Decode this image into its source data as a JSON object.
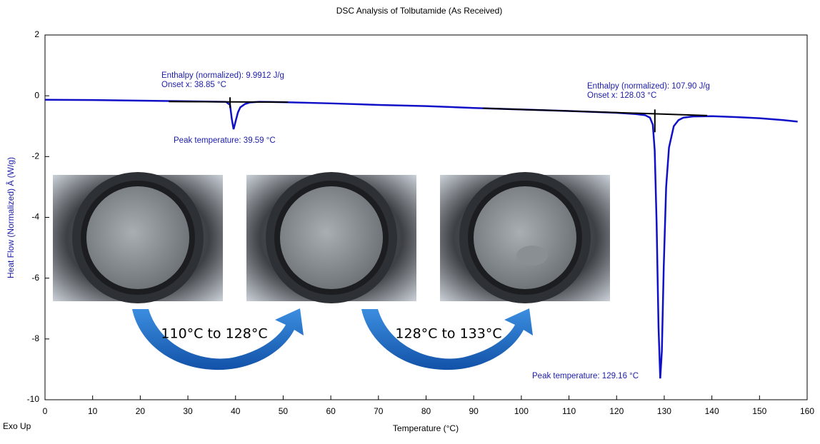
{
  "chart_data": {
    "type": "line",
    "title": "DSC Analysis of Tolbutamide (As Received)",
    "x_label": "Temperature    (°C)",
    "y_label": "Heat Flow (Normalized) Â (W/g)",
    "corner_note": "Exo Up",
    "xlim": [
      0,
      160
    ],
    "xticks": [
      0,
      10,
      20,
      30,
      40,
      50,
      60,
      70,
      80,
      90,
      100,
      110,
      120,
      130,
      140,
      150,
      160
    ],
    "ylim": [
      -10,
      2
    ],
    "yticks": [
      -10,
      -8,
      -6,
      -4,
      -2,
      0,
      2
    ],
    "series": [
      {
        "color": "#1010c8",
        "x": [
          0,
          10,
          20,
          30,
          38,
          38.85,
          39.2,
          39.59,
          40,
          40.5,
          41,
          42,
          43,
          45,
          50,
          60,
          70,
          80,
          90,
          100,
          110,
          120,
          124,
          126,
          127,
          127.6,
          128,
          128.4,
          128.8,
          129.16,
          129.5,
          129.9,
          130.4,
          131,
          132,
          133,
          134,
          136,
          140,
          145,
          150,
          155,
          158
        ],
        "y": [
          -0.13,
          -0.14,
          -0.16,
          -0.18,
          -0.2,
          -0.3,
          -0.75,
          -1.1,
          -0.85,
          -0.55,
          -0.38,
          -0.27,
          -0.22,
          -0.2,
          -0.21,
          -0.25,
          -0.3,
          -0.34,
          -0.4,
          -0.45,
          -0.5,
          -0.56,
          -0.6,
          -0.64,
          -0.72,
          -0.95,
          -1.8,
          -4.2,
          -7.6,
          -9.3,
          -8.4,
          -5.6,
          -3.0,
          -1.7,
          -1.0,
          -0.8,
          -0.72,
          -0.68,
          -0.67,
          -0.7,
          -0.74,
          -0.8,
          -0.85
        ]
      },
      {
        "color": "#000000",
        "x": [
          26,
          51
        ],
        "y": [
          -0.19,
          -0.21
        ]
      },
      {
        "color": "#000000",
        "x": [
          92,
          139
        ],
        "y": [
          -0.41,
          -0.65
        ]
      },
      {
        "color": "#000000",
        "x": [
          38.85,
          38.85
        ],
        "y": [
          -0.05,
          -0.4
        ]
      },
      {
        "color": "#000000",
        "x": [
          128.03,
          128.03
        ],
        "y": [
          -0.45,
          -1.2
        ]
      }
    ],
    "annotations": [
      "Enthalpy (normalized): 9.9912 J/g",
      "Onset x: 38.85 °C",
      "Peak temperature: 39.59 °C",
      "Enthalpy (normalized): 107.90 J/g",
      "Onset x: 128.03 °C",
      "Peak temperature: 129.16 °C"
    ],
    "captions": [
      "110°C to 128°C",
      "128°C to 133°C"
    ]
  }
}
